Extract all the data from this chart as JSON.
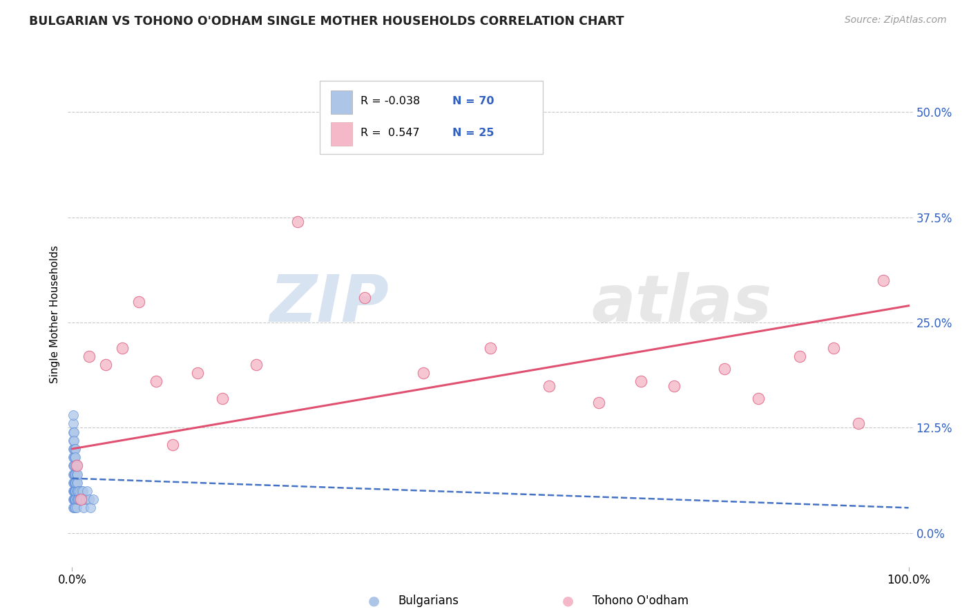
{
  "title": "BULGARIAN VS TOHONO O'ODHAM SINGLE MOTHER HOUSEHOLDS CORRELATION CHART",
  "source": "Source: ZipAtlas.com",
  "ylabel": "Single Mother Households",
  "watermark_zip": "ZIP",
  "watermark_atlas": "atlas",
  "legend_r1_label": "R = -0.038",
  "legend_n1_label": "N = 70",
  "legend_r2_label": "R =  0.547",
  "legend_n2_label": "N = 25",
  "xlim": [
    -0.005,
    1.005
  ],
  "ylim": [
    -0.04,
    0.56
  ],
  "yticks": [
    0.0,
    0.125,
    0.25,
    0.375,
    0.5
  ],
  "ytick_labels": [
    "0.0%",
    "12.5%",
    "25.0%",
    "37.5%",
    "50.0%"
  ],
  "xtick_labels": [
    "0.0%",
    "100.0%"
  ],
  "color_blue_fill": "#adc6e8",
  "color_blue_edge": "#5b8dd9",
  "color_pink_fill": "#f4b8c8",
  "color_pink_edge": "#e06080",
  "color_blue_text": "#3060c0",
  "color_blue_line": "#4472c4",
  "color_pink_line": "#e05070",
  "background": "#ffffff",
  "grid_color": "#c8c8c8",
  "bulgarian_x": [
    0.001,
    0.001,
    0.001,
    0.001,
    0.001,
    0.001,
    0.001,
    0.001,
    0.001,
    0.001,
    0.002,
    0.002,
    0.002,
    0.002,
    0.002,
    0.002,
    0.002,
    0.002,
    0.002,
    0.002,
    0.003,
    0.003,
    0.003,
    0.003,
    0.003,
    0.003,
    0.003,
    0.003,
    0.003,
    0.003,
    0.004,
    0.004,
    0.004,
    0.004,
    0.004,
    0.004,
    0.004,
    0.004,
    0.005,
    0.005,
    0.005,
    0.005,
    0.005,
    0.006,
    0.006,
    0.006,
    0.007,
    0.007,
    0.008,
    0.009,
    0.01,
    0.011,
    0.012,
    0.013,
    0.014,
    0.016,
    0.018,
    0.02,
    0.022,
    0.025,
    0.001,
    0.001,
    0.002,
    0.002,
    0.003,
    0.003,
    0.004,
    0.004,
    0.005,
    0.006
  ],
  "bulgarian_y": [
    0.04,
    0.05,
    0.06,
    0.07,
    0.08,
    0.09,
    0.1,
    0.11,
    0.12,
    0.03,
    0.04,
    0.05,
    0.06,
    0.07,
    0.08,
    0.09,
    0.1,
    0.03,
    0.04,
    0.05,
    0.04,
    0.05,
    0.06,
    0.07,
    0.08,
    0.03,
    0.04,
    0.05,
    0.06,
    0.07,
    0.04,
    0.05,
    0.06,
    0.07,
    0.03,
    0.04,
    0.05,
    0.06,
    0.04,
    0.05,
    0.06,
    0.07,
    0.03,
    0.04,
    0.05,
    0.06,
    0.04,
    0.05,
    0.04,
    0.05,
    0.04,
    0.05,
    0.04,
    0.05,
    0.03,
    0.04,
    0.05,
    0.04,
    0.03,
    0.04,
    0.13,
    0.14,
    0.12,
    0.11,
    0.1,
    0.09,
    0.1,
    0.09,
    0.08,
    0.07
  ],
  "tohono_x": [
    0.005,
    0.01,
    0.02,
    0.04,
    0.06,
    0.08,
    0.1,
    0.12,
    0.15,
    0.18,
    0.22,
    0.27,
    0.35,
    0.42,
    0.5,
    0.57,
    0.63,
    0.68,
    0.72,
    0.78,
    0.82,
    0.87,
    0.91,
    0.94,
    0.97
  ],
  "tohono_y": [
    0.08,
    0.04,
    0.21,
    0.2,
    0.22,
    0.275,
    0.18,
    0.105,
    0.19,
    0.16,
    0.2,
    0.37,
    0.28,
    0.19,
    0.22,
    0.175,
    0.155,
    0.18,
    0.175,
    0.195,
    0.16,
    0.21,
    0.22,
    0.13,
    0.3
  ],
  "blue_trend_x": [
    0.0,
    1.0
  ],
  "blue_trend_y": [
    0.065,
    0.03
  ],
  "pink_trend_x": [
    0.0,
    1.0
  ],
  "pink_trend_y": [
    0.1,
    0.27
  ]
}
